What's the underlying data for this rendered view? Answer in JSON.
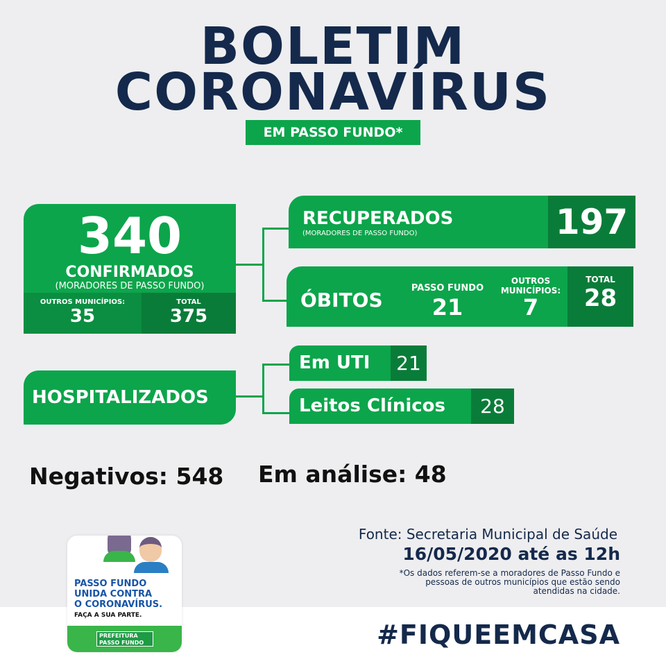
{
  "header": {
    "title1": "BOLETIM",
    "title2": "CORONAVÍRUS",
    "badge": "EM PASSO FUNDO*"
  },
  "confirmados": {
    "number": "340",
    "label": "CONFIRMADOS",
    "sub": "(MORADORES DE PASSO FUNDO)",
    "outros_label": "OUTROS MUNICÍPIOS:",
    "outros_value": "35",
    "total_label": "TOTAL",
    "total_value": "375"
  },
  "recuperados": {
    "label": "RECUPERADOS",
    "sub": "(MORADORES DE PASSO FUNDO)",
    "value": "197"
  },
  "obitos": {
    "label": "ÓBITOS",
    "pf_label": "PASSO FUNDO",
    "pf_value": "21",
    "outros_label": "OUTROS MUNICÍPIOS:",
    "outros_value": "7",
    "total_label": "TOTAL",
    "total_value": "28"
  },
  "hospitalizados": {
    "label": "HOSPITALIZADOS",
    "uti_label": "Em UTI",
    "uti_value": "21",
    "leitos_label": "Leitos Clínicos",
    "leitos_value": "28"
  },
  "negativos": "Negativos: 548",
  "analise": "Em análise: 48",
  "fonte": "Fonte: Secretaria Municipal de Saúde",
  "data": "16/05/2020 até as 12h",
  "nota": "*Os dados referem-se a moradores de Passo Fundo e pessoas de outros municípios que estão sendo atendidas na cidade.",
  "hashtag": "#FIQUEEMCASA",
  "logo": {
    "line1": "PASSO FUNDO",
    "line2": "UNIDA CONTRA",
    "line3": "O CORONAVÍRUS.",
    "line4": "FAÇA A SUA PARTE.",
    "prefeitura1": "PREFEITURA",
    "prefeitura2": "PASSO FUNDO"
  },
  "colors": {
    "green": "#0ca54b",
    "dark_green": "#0a7c39",
    "navy": "#14294b"
  }
}
